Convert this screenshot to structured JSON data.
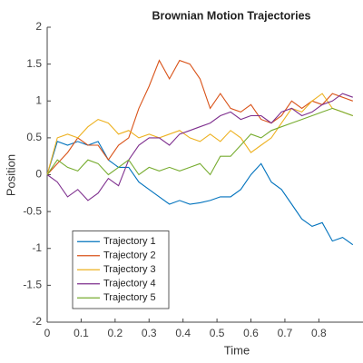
{
  "chart_data": {
    "type": "line",
    "title": "Brownian Motion Trajectories",
    "x_label": "Time",
    "y_label": "Position",
    "x": [
      0,
      0.03,
      0.06,
      0.09,
      0.12,
      0.15,
      0.18,
      0.21,
      0.24,
      0.27,
      0.3,
      0.33,
      0.36,
      0.39,
      0.42,
      0.45,
      0.48,
      0.51,
      0.54,
      0.57,
      0.6,
      0.63,
      0.66,
      0.69,
      0.72,
      0.75,
      0.78,
      0.81,
      0.84,
      0.87,
      0.9
    ],
    "series": [
      {
        "name": "Trajectory 1",
        "color": "#0072BD",
        "values": [
          0,
          0.45,
          0.4,
          0.45,
          0.4,
          0.45,
          0.2,
          0.1,
          0.1,
          -0.1,
          -0.2,
          -0.3,
          -0.4,
          -0.35,
          -0.4,
          -0.38,
          -0.35,
          -0.3,
          -0.3,
          -0.2,
          0.0,
          0.15,
          -0.1,
          -0.2,
          -0.4,
          -0.6,
          -0.7,
          -0.65,
          -0.9,
          -0.85,
          -0.95
        ]
      },
      {
        "name": "Trajectory 2",
        "color": "#D95319",
        "values": [
          0,
          0.15,
          0.3,
          0.5,
          0.4,
          0.4,
          0.2,
          0.4,
          0.5,
          0.9,
          1.2,
          1.55,
          1.3,
          1.55,
          1.5,
          1.3,
          0.9,
          1.1,
          0.9,
          0.85,
          0.95,
          0.75,
          0.7,
          0.8,
          1.0,
          0.9,
          1.0,
          0.95,
          1.1,
          1.05,
          1.0
        ]
      },
      {
        "name": "Trajectory 3",
        "color": "#EDB120",
        "values": [
          0,
          0.5,
          0.55,
          0.5,
          0.65,
          0.75,
          0.7,
          0.55,
          0.6,
          0.5,
          0.55,
          0.5,
          0.55,
          0.6,
          0.5,
          0.45,
          0.55,
          0.45,
          0.6,
          0.5,
          0.3,
          0.4,
          0.5,
          0.7,
          0.9,
          0.85,
          1.0,
          1.1,
          0.9,
          0.85,
          0.8
        ]
      },
      {
        "name": "Trajectory 4",
        "color": "#7E2F8E",
        "values": [
          0,
          -0.1,
          -0.3,
          -0.2,
          -0.35,
          -0.25,
          -0.05,
          -0.15,
          0.2,
          0.4,
          0.5,
          0.5,
          0.4,
          0.55,
          0.6,
          0.65,
          0.7,
          0.8,
          0.85,
          0.75,
          0.8,
          0.8,
          0.7,
          0.85,
          0.9,
          0.8,
          0.85,
          0.95,
          1.0,
          1.1,
          1.05
        ]
      },
      {
        "name": "Trajectory 5",
        "color": "#77AC30",
        "values": [
          0,
          0.2,
          0.1,
          0.05,
          0.2,
          0.15,
          0.0,
          0.1,
          0.2,
          0.0,
          0.1,
          0.05,
          0.1,
          0.05,
          0.1,
          0.15,
          0.0,
          0.25,
          0.25,
          0.4,
          0.55,
          0.5,
          0.6,
          0.65,
          0.7,
          0.75,
          0.8,
          0.85,
          0.9,
          0.85,
          0.8
        ]
      }
    ],
    "xlim": [
      0,
      0.93
    ],
    "ylim": [
      -2,
      2
    ],
    "xticks": [
      0,
      0.1,
      0.2,
      0.3,
      0.4,
      0.5,
      0.6,
      0.7,
      0.8
    ],
    "yticks": [
      -2,
      -1.5,
      -1,
      -0.5,
      0,
      0.5,
      1,
      1.5,
      2
    ],
    "legend": "lower left"
  }
}
